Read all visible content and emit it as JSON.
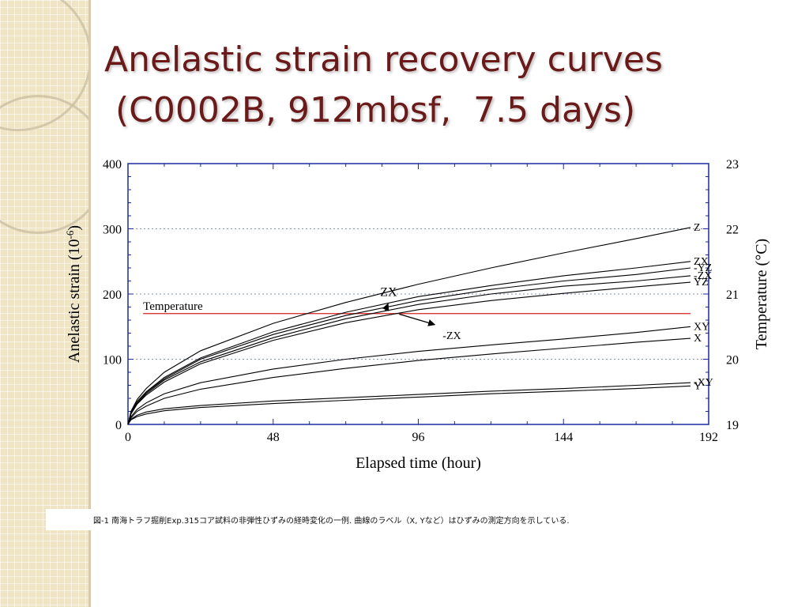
{
  "slide": {
    "title_line1": "Anelastic strain recovery curves",
    "title_line2": " (C0002B, 912mbsf,  7.5 days)",
    "caption": "図-1  南海トラフ掘削Exp.315コア試料の非弾性ひずみの経時変化の一例. 曲線のラベル（X, Yなど）はひずみの測定方向を示している."
  },
  "chart_data": {
    "type": "line",
    "xlabel": "Elapsed time (hour)",
    "ylabel": "Anelastic strain (10",
    "ylabel_exponent": "-6",
    "ylabel_suffix": ")",
    "y2label": "Temperature (°C)",
    "xlim": [
      0,
      192
    ],
    "ylim": [
      0,
      400
    ],
    "y2lim": [
      19,
      23
    ],
    "x_ticks": [
      "0",
      "48",
      "96",
      "144",
      "192"
    ],
    "y_ticks": [
      "0",
      "100",
      "200",
      "300",
      "400"
    ],
    "y2_ticks": [
      "19",
      "20",
      "21",
      "22",
      "23"
    ],
    "grid": "dotted horizontal",
    "x": [
      0,
      1,
      3,
      6,
      12,
      24,
      48,
      72,
      96,
      120,
      144,
      168,
      186
    ],
    "series": [
      {
        "name": "Z",
        "values": [
          0,
          20,
          38,
          55,
          80,
          113,
          155,
          187,
          215,
          240,
          263,
          285,
          302
        ]
      },
      {
        "name": "ZX",
        "values": [
          0,
          18,
          35,
          50,
          72,
          102,
          142,
          172,
          196,
          213,
          228,
          240,
          250
        ]
      },
      {
        "name": "-YZ",
        "values": [
          0,
          18,
          34,
          49,
          70,
          100,
          138,
          167,
          190,
          207,
          220,
          230,
          240
        ]
      },
      {
        "name": "-ZX",
        "values": [
          0,
          17,
          32,
          47,
          68,
          96,
          133,
          162,
          184,
          200,
          212,
          220,
          228
        ]
      },
      {
        "name": "YZ",
        "values": [
          0,
          16,
          31,
          45,
          65,
          93,
          129,
          156,
          176,
          190,
          201,
          211,
          218
        ]
      },
      {
        "name": "XY",
        "values": [
          0,
          12,
          23,
          33,
          47,
          64,
          85,
          100,
          112,
          122,
          131,
          141,
          150
        ]
      },
      {
        "name": "X",
        "values": [
          0,
          10,
          20,
          28,
          40,
          54,
          72,
          86,
          98,
          108,
          117,
          126,
          132
        ]
      },
      {
        "name": "-XY",
        "values": [
          0,
          8,
          14,
          19,
          24,
          29,
          36,
          41,
          46,
          51,
          55,
          60,
          64
        ]
      },
      {
        "name": "Y",
        "values": [
          0,
          7,
          12,
          16,
          21,
          26,
          32,
          37,
          42,
          47,
          51,
          55,
          59
        ]
      }
    ],
    "temperature": {
      "label": "Temperature",
      "value": 20.7,
      "x_range": [
        5,
        186
      ],
      "color": "#d62020"
    },
    "annotations": [
      {
        "text": "ZX",
        "points_to": [
          86,
          185
        ]
      },
      {
        "text": "-ZX",
        "points_to": [
          103,
          153
        ]
      }
    ]
  }
}
